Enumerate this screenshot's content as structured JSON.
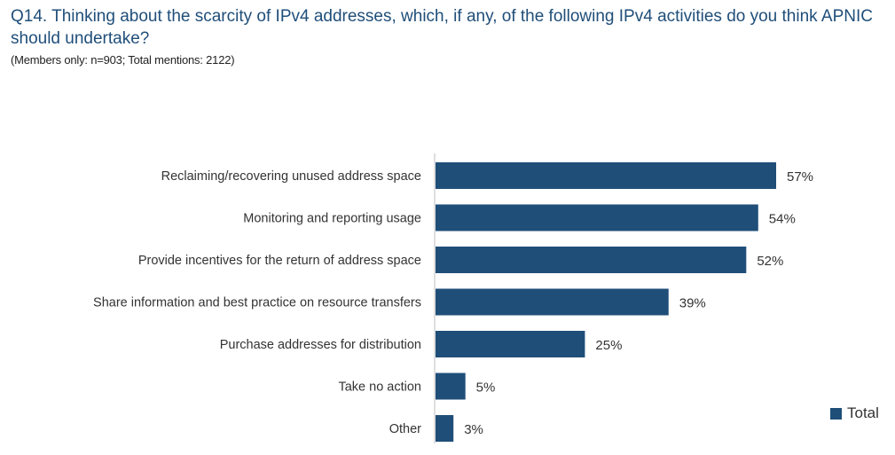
{
  "title": "Q14. Thinking about the scarcity of IPv4 addresses, which, if any, of the following IPv4 activities do you think APNIC should undertake?",
  "subtitle": "(Members only: n=903; Total mentions: 2122)",
  "colors": {
    "bar": "#1f4e79",
    "title": "#1f4e79",
    "axis": "#bfbfbf"
  },
  "chart_data": {
    "type": "bar",
    "orientation": "horizontal",
    "title": "Q14. Thinking about the scarcity of IPv4 addresses, which, if any, of the following IPv4 activities do you think APNIC should undertake?",
    "subtitle": "(Members only: n=903; Total mentions: 2122)",
    "categories": [
      "Reclaiming/recovering unused address space",
      "Monitoring and reporting usage",
      "Provide incentives for the return of address space",
      "Share information and best practice on resource transfers",
      "Purchase addresses for distribution",
      "Take no action",
      "Other"
    ],
    "series": [
      {
        "name": "Total",
        "values": [
          57,
          54,
          52,
          39,
          25,
          5,
          3
        ]
      }
    ],
    "value_labels": [
      "57%",
      "54%",
      "52%",
      "39%",
      "25%",
      "5%",
      "3%"
    ],
    "unit": "%",
    "grid": false,
    "legend": {
      "position": "bottom-right",
      "entries": [
        "Total"
      ]
    }
  }
}
